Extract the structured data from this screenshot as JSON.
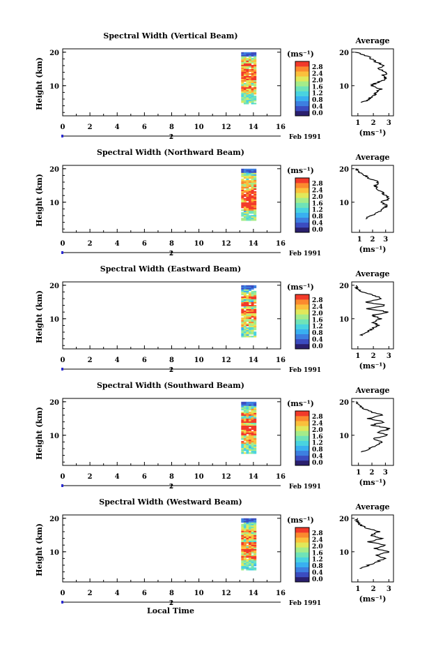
{
  "colors": {
    "scale": [
      "#2a1f6e",
      "#3b4cc0",
      "#3d7fe0",
      "#39b0f0",
      "#49d3e0",
      "#6fe3b8",
      "#a5ec8a",
      "#e1e85a",
      "#fbc03c",
      "#fb8a2e",
      "#f23a2a"
    ]
  },
  "chart_data": [
    {
      "type": "heatmap",
      "title": "Spectral Width (Vertical Beam)",
      "ylabel": "Height (km)",
      "y_ticks": [
        "10",
        "20"
      ],
      "x_ticks": [
        "0",
        "2",
        "4",
        "6",
        "8",
        "10",
        "12",
        "14",
        "16"
      ],
      "xlim": [
        0,
        16
      ],
      "ylim": [
        1,
        21
      ],
      "date_marker": "2",
      "date_label": "Feb 1991",
      "data_span": {
        "time": [
          13.1,
          14.2
        ],
        "height": [
          4.5,
          20
        ]
      },
      "colorbar": {
        "unit": "(ms⁻¹)",
        "ticks": [
          "0.0",
          "0.4",
          "0.8",
          "1.2",
          "1.6",
          "2.0",
          "2.4",
          "2.8"
        ]
      },
      "average": {
        "title": "Average",
        "xlabel": "(ms⁻¹)",
        "x_ticks": [
          "1",
          "2",
          "3"
        ],
        "y_ticks": [
          "10",
          "20"
        ],
        "xlim": [
          0.6,
          3.3
        ],
        "heights": [
          5,
          6,
          7,
          8,
          9,
          10,
          11,
          12,
          13,
          14,
          15,
          16,
          17,
          18,
          19,
          20
        ],
        "values": [
          1.3,
          1.7,
          2.0,
          2.2,
          2.5,
          1.8,
          2.3,
          2.8,
          2.6,
          2.9,
          2.3,
          2.7,
          2.2,
          1.9,
          1.5,
          0.8
        ]
      }
    },
    {
      "type": "heatmap",
      "title": "Spectral Width (Northward Beam)",
      "ylabel": "Height (km)",
      "y_ticks": [
        "10",
        "20"
      ],
      "x_ticks": [
        "0",
        "2",
        "4",
        "6",
        "8",
        "10",
        "12",
        "14",
        "16"
      ],
      "xlim": [
        0,
        16
      ],
      "ylim": [
        1,
        21
      ],
      "date_marker": "2",
      "date_label": "Feb 1991",
      "data_span": {
        "time": [
          13.1,
          14.2
        ],
        "height": [
          4.5,
          20
        ]
      },
      "colorbar": {
        "unit": "(ms⁻¹)",
        "ticks": [
          "0.0",
          "0.4",
          "0.8",
          "1.2",
          "1.6",
          "2.0",
          "2.4",
          "2.8"
        ]
      },
      "average": {
        "title": "Average",
        "xlabel": "(ms⁻¹)",
        "x_ticks": [
          "1",
          "2",
          "3"
        ],
        "y_ticks": [
          "10",
          "20"
        ],
        "xlim": [
          0.4,
          3.6
        ],
        "heights": [
          5,
          6,
          7,
          8,
          9,
          10,
          11,
          12,
          13,
          14,
          15,
          16,
          17,
          18,
          19,
          20
        ],
        "values": [
          1.4,
          1.9,
          2.4,
          2.8,
          3.1,
          2.6,
          3.3,
          3.0,
          2.7,
          2.4,
          2.2,
          2.5,
          1.8,
          1.4,
          1.0,
          0.7
        ]
      }
    },
    {
      "type": "heatmap",
      "title": "Spectral Width (Eastward Beam)",
      "ylabel": "Height (km)",
      "y_ticks": [
        "10",
        "20"
      ],
      "x_ticks": [
        "0",
        "2",
        "4",
        "6",
        "8",
        "10",
        "12",
        "14",
        "16"
      ],
      "xlim": [
        0,
        16
      ],
      "ylim": [
        1,
        21
      ],
      "date_marker": "2",
      "date_label": "Feb 1991",
      "data_span": {
        "time": [
          13.1,
          14.2
        ],
        "height": [
          4.5,
          20
        ]
      },
      "colorbar": {
        "unit": "(ms⁻¹)",
        "ticks": [
          "0.0",
          "0.4",
          "0.8",
          "1.2",
          "1.6",
          "2.0",
          "2.4",
          "2.8"
        ]
      },
      "average": {
        "title": "Average",
        "xlabel": "(ms⁻¹)",
        "x_ticks": [
          "1",
          "2",
          "3"
        ],
        "y_ticks": [
          "10",
          "20"
        ],
        "xlim": [
          0.6,
          3.3
        ],
        "heights": [
          5,
          6,
          7,
          8,
          9,
          10,
          11,
          12,
          13,
          14,
          15,
          16,
          17,
          18,
          19,
          20
        ],
        "values": [
          1.2,
          1.6,
          1.9,
          2.3,
          2.0,
          2.5,
          1.9,
          3.0,
          1.6,
          2.8,
          1.5,
          2.6,
          2.0,
          1.3,
          1.0,
          0.9
        ]
      }
    },
    {
      "type": "heatmap",
      "title": "Spectral Width (Southward Beam)",
      "ylabel": "Height (km)",
      "y_ticks": [
        "10",
        "20"
      ],
      "x_ticks": [
        "0",
        "2",
        "4",
        "6",
        "8",
        "10",
        "12",
        "14",
        "16"
      ],
      "xlim": [
        0,
        16
      ],
      "ylim": [
        1,
        21
      ],
      "date_marker": "2",
      "date_label": "Feb 1991",
      "data_span": {
        "time": [
          13.1,
          14.2
        ],
        "height": [
          4.5,
          20
        ]
      },
      "colorbar": {
        "unit": "(ms⁻¹)",
        "ticks": [
          "0.0",
          "0.4",
          "0.8",
          "1.2",
          "1.6",
          "2.0",
          "2.4",
          "2.8"
        ]
      },
      "average": {
        "title": "Average",
        "xlabel": "(ms⁻¹)",
        "x_ticks": [
          "1",
          "2",
          "3"
        ],
        "y_ticks": [
          "10",
          "20"
        ],
        "xlim": [
          0.5,
          3.6
        ],
        "heights": [
          5,
          6,
          7,
          8,
          9,
          10,
          11,
          12,
          13,
          14,
          15,
          16,
          17,
          18,
          19,
          20
        ],
        "values": [
          1.3,
          1.8,
          2.3,
          2.7,
          2.1,
          3.2,
          2.4,
          3.4,
          2.0,
          2.9,
          1.7,
          2.8,
          1.9,
          1.4,
          1.0,
          0.8
        ]
      }
    },
    {
      "type": "heatmap",
      "title": "Spectral Width (Westward Beam)",
      "ylabel": "Height (km)",
      "y_ticks": [
        "10",
        "20"
      ],
      "x_ticks": [
        "0",
        "2",
        "4",
        "6",
        "8",
        "10",
        "12",
        "14",
        "16"
      ],
      "xlim": [
        0,
        16
      ],
      "ylim": [
        1,
        21
      ],
      "date_marker": "2",
      "date_label": "Feb 1991",
      "data_span": {
        "time": [
          13.1,
          14.2
        ],
        "height": [
          4.5,
          20
        ]
      },
      "colorbar": {
        "unit": "(ms⁻¹)",
        "ticks": [
          "0.0",
          "0.4",
          "0.8",
          "1.2",
          "1.6",
          "2.0",
          "2.4",
          "2.8"
        ]
      },
      "average": {
        "title": "Average",
        "xlabel": "(ms⁻¹)",
        "x_ticks": [
          "1",
          "2",
          "3"
        ],
        "y_ticks": [
          "10",
          "20"
        ],
        "xlim": [
          0.6,
          3.3
        ],
        "heights": [
          5,
          6,
          7,
          8,
          9,
          10,
          11,
          12,
          13,
          14,
          15,
          16,
          17,
          18,
          19,
          20
        ],
        "values": [
          1.2,
          1.7,
          2.2,
          2.7,
          2.2,
          3.0,
          2.1,
          2.8,
          1.7,
          2.6,
          1.8,
          2.4,
          1.6,
          1.2,
          0.9,
          1.0
        ]
      }
    }
  ],
  "footer": {
    "xlabel": "Local Time"
  }
}
